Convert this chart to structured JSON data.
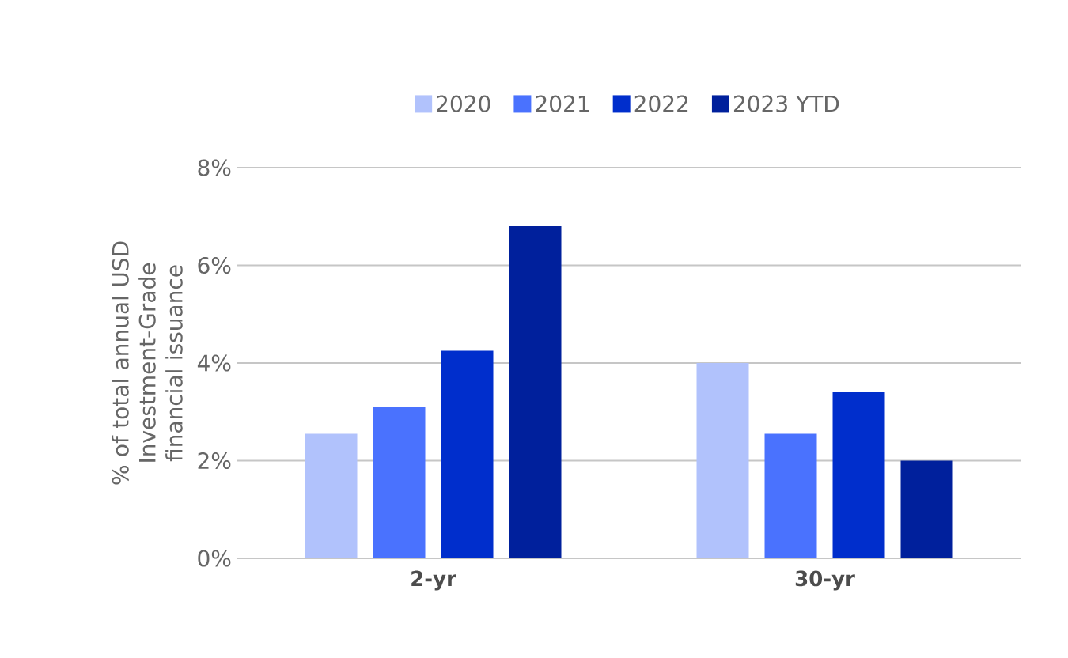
{
  "chart_data": {
    "type": "bar",
    "ylabel": "% of total annual USD Investment-Grade financial issuance",
    "categories": [
      "2-yr",
      "30-yr"
    ],
    "series": [
      {
        "name": "2020",
        "color": "#b1c2fc",
        "values": [
          2.55,
          4.0
        ]
      },
      {
        "name": "2021",
        "color": "#4a72fe",
        "values": [
          3.1,
          2.55
        ]
      },
      {
        "name": "2022",
        "color": "#002ecc",
        "values": [
          4.25,
          3.4
        ]
      },
      {
        "name": "2023 YTD",
        "color": "#00209c",
        "values": [
          6.8,
          2.0
        ]
      }
    ],
    "ylim": [
      0,
      8
    ],
    "yticks": [
      {
        "value": 0,
        "label": "0%"
      },
      {
        "value": 2,
        "label": "2%"
      },
      {
        "value": 4,
        "label": "4%"
      },
      {
        "value": 6,
        "label": "6%"
      },
      {
        "value": 8,
        "label": "8%"
      }
    ],
    "grid": "y",
    "legend": "top"
  }
}
